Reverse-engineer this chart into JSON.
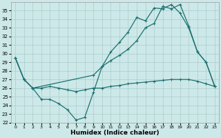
{
  "xlabel": "Humidex (Indice chaleur)",
  "bg_color": "#cde8e8",
  "grid_color": "#aacccc",
  "line_color": "#1a7070",
  "xlim": [
    -0.5,
    23.5
  ],
  "ylim": [
    22,
    36
  ],
  "yticks": [
    22,
    23,
    24,
    25,
    26,
    27,
    28,
    29,
    30,
    31,
    32,
    33,
    34,
    35
  ],
  "xticks": [
    0,
    1,
    2,
    3,
    4,
    5,
    6,
    7,
    8,
    9,
    10,
    11,
    12,
    13,
    14,
    15,
    16,
    17,
    18,
    19,
    20,
    21,
    22,
    23
  ],
  "line1_x": [
    0,
    1,
    2,
    3,
    4,
    5,
    6,
    7,
    8,
    9,
    10,
    11,
    12,
    13,
    14,
    15,
    16,
    17,
    18,
    19,
    20,
    21,
    22,
    23
  ],
  "line1_y": [
    29.5,
    27.0,
    26.0,
    24.7,
    24.7,
    24.2,
    23.5,
    22.3,
    22.6,
    25.5,
    28.5,
    30.2,
    31.3,
    32.5,
    34.2,
    33.8,
    35.3,
    35.2,
    35.7,
    34.7,
    33.0,
    30.2,
    29.0,
    26.2
  ],
  "line2_x": [
    0,
    1,
    2,
    9,
    10,
    11,
    12,
    13,
    14,
    15,
    16,
    17,
    18,
    19,
    20,
    21,
    22,
    23
  ],
  "line2_y": [
    29.5,
    27.0,
    26.0,
    27.5,
    28.5,
    29.2,
    29.8,
    30.5,
    31.5,
    33.0,
    33.5,
    35.5,
    35.2,
    35.7,
    33.2,
    30.2,
    29.0,
    26.2
  ],
  "line3_x": [
    0,
    1,
    2,
    3,
    4,
    5,
    6,
    7,
    8,
    9,
    10,
    11,
    12,
    13,
    14,
    15,
    16,
    17,
    18,
    19,
    20,
    21,
    22,
    23
  ],
  "line3_y": [
    29.5,
    27.0,
    26.0,
    26.0,
    26.2,
    26.0,
    25.8,
    25.6,
    25.8,
    26.0,
    26.0,
    26.2,
    26.3,
    26.5,
    26.6,
    26.7,
    26.8,
    26.9,
    27.0,
    27.0,
    27.0,
    26.8,
    26.5,
    26.2
  ]
}
